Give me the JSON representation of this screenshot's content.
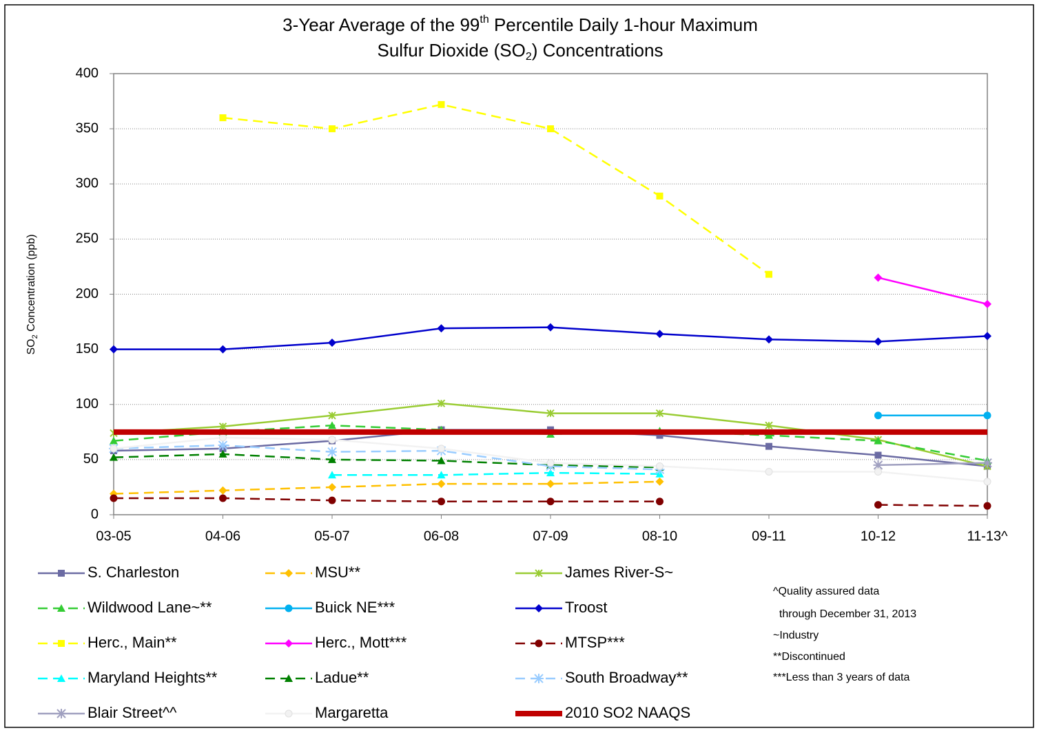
{
  "chart_data": {
    "type": "line",
    "title": {
      "line1": [
        "3-Year Average of the 99",
        "th",
        " Percentile Daily 1-hour Maximum"
      ],
      "line2": [
        "Sulfur Dioxide (SO",
        "2",
        ") Concentrations"
      ]
    },
    "y_label": [
      "SO",
      "2",
      " Concentration (ppb)"
    ],
    "categories": [
      "03-05",
      "04-06",
      "05-07",
      "06-08",
      "07-09",
      "08-10",
      "09-11",
      "10-12",
      "11-13^"
    ],
    "ylim": [
      0,
      400
    ],
    "yticks": [
      0,
      50,
      100,
      150,
      200,
      250,
      300,
      350,
      400
    ],
    "grid": true,
    "series": [
      {
        "name": "S. Charleston",
        "color": "#6b6ba3",
        "dashed": false,
        "marker": "square",
        "values": [
          58,
          60,
          67,
          77,
          77,
          72,
          62,
          54,
          44
        ]
      },
      {
        "name": "MSU**",
        "color": "#ffc000",
        "dashed": true,
        "marker": "diamond",
        "values": [
          19,
          22,
          25,
          28,
          28,
          30,
          null,
          null,
          null
        ]
      },
      {
        "name": "James River-S~",
        "color": "#99cc33",
        "dashed": false,
        "marker": "asterisk",
        "values": [
          74,
          80,
          90,
          101,
          92,
          92,
          81,
          68,
          44
        ]
      },
      {
        "name": "Wildwood Lane~**",
        "color": "#33cc33",
        "dashed": true,
        "marker": "triangle",
        "values": [
          67,
          75,
          81,
          77,
          73,
          76,
          72,
          67,
          49
        ]
      },
      {
        "name": "Buick NE***",
        "color": "#00b0f0",
        "dashed": false,
        "marker": "circle",
        "values": [
          null,
          null,
          null,
          null,
          null,
          null,
          null,
          90,
          90
        ]
      },
      {
        "name": "Troost",
        "color": "#0000cc",
        "dashed": false,
        "marker": "diamond",
        "values": [
          150,
          150,
          156,
          169,
          170,
          164,
          159,
          157,
          162
        ]
      },
      {
        "name": "Herc., Main**",
        "color": "#ffff00",
        "dashed": true,
        "marker": "square",
        "values": [
          null,
          360,
          350,
          372,
          350,
          289,
          218,
          null,
          null
        ]
      },
      {
        "name": "Herc., Mott***",
        "color": "#ff00ff",
        "dashed": false,
        "marker": "diamond",
        "values": [
          null,
          null,
          null,
          null,
          null,
          null,
          null,
          215,
          191
        ]
      },
      {
        "name": "MTSP***",
        "color": "#800000",
        "dashed": true,
        "marker": "circle",
        "values": [
          15,
          15,
          13,
          12,
          12,
          12,
          null,
          9,
          8
        ]
      },
      {
        "name": "Maryland Heights**",
        "color": "#00ffff",
        "dashed": true,
        "marker": "triangle",
        "values": [
          null,
          null,
          36,
          36,
          38,
          37,
          null,
          null,
          null
        ]
      },
      {
        "name": "Ladue**",
        "color": "#008000",
        "dashed": true,
        "marker": "triangle",
        "values": [
          52,
          55,
          50,
          49,
          45,
          43,
          null,
          null,
          null
        ]
      },
      {
        "name": "South Broadway**",
        "color": "#99ccff",
        "dashed": true,
        "marker": "star",
        "values": [
          60,
          63,
          57,
          58,
          44,
          41,
          null,
          null,
          null
        ]
      },
      {
        "name": "Blair Street^^",
        "color": "#a0a0c0",
        "dashed": false,
        "marker": "star",
        "values": [
          null,
          null,
          null,
          null,
          null,
          null,
          null,
          45,
          47
        ]
      },
      {
        "name": "Margaretta",
        "color": "#f2f2f2",
        "dashed": false,
        "marker": "circle",
        "values": [
          60,
          70,
          68,
          60,
          47,
          44,
          39,
          39,
          30
        ]
      },
      {
        "name": "2010 SO2 NAAQS",
        "color": "#c00000",
        "dashed": false,
        "marker": "none",
        "width": 8,
        "values": [
          75,
          75,
          75,
          75,
          75,
          75,
          75,
          75,
          75
        ]
      }
    ],
    "notes": [
      "^Quality assured data",
      "  through December 31, 2013",
      "~Industry",
      "**Discontinued",
      "***Less than 3 years of data"
    ]
  }
}
